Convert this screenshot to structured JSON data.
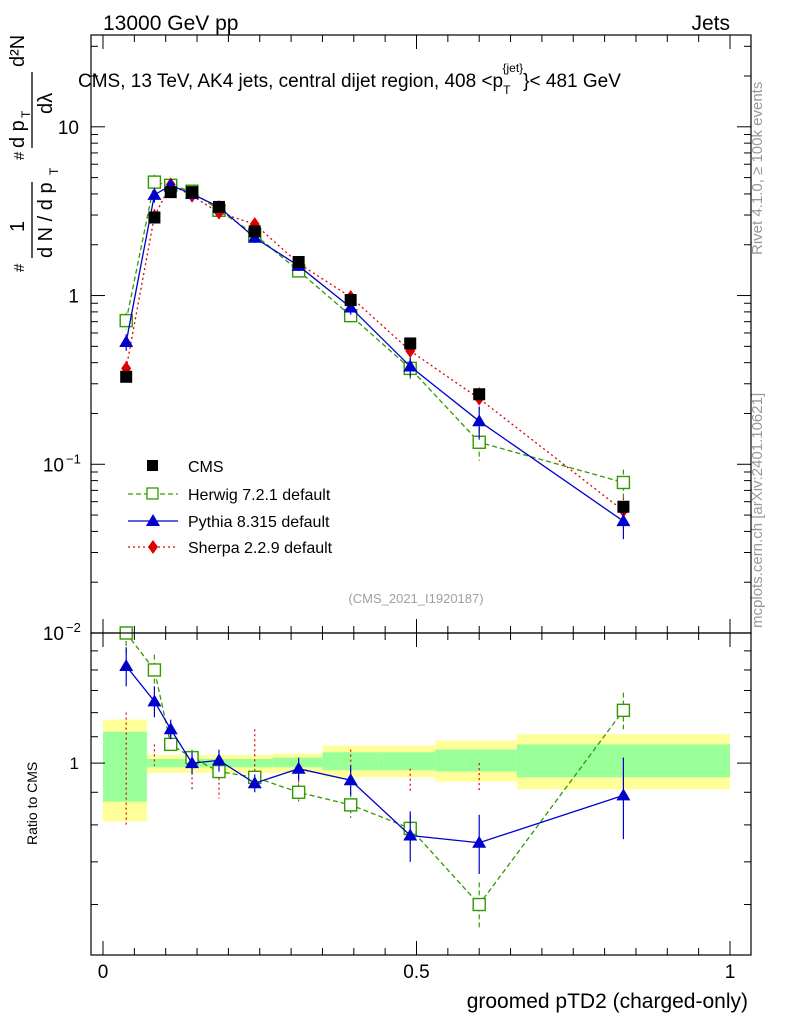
{
  "header": {
    "left_label": "13000 GeV pp",
    "right_label": "Jets",
    "side_label_top": "Rivet 4.1.0, ≥ 100k events",
    "side_label_bottom": "mcplots.cern.ch [arXiv:2401.10621]"
  },
  "chart_data": [
    {
      "type": "line",
      "panel": "main",
      "title": "CMS, 13 TeV, AK4 jets, central dijet region, 408 <p",
      "title_sub": "T",
      "title_sup": "{jet}",
      "title_end": "}< 481 GeV",
      "ylabel_parts": [
        "#",
        "1",
        "d N / d p",
        "T",
        "#",
        "d p",
        "T",
        "dλ",
        "d²N"
      ],
      "yscale": "log",
      "ylim": [
        0.01,
        35
      ],
      "xlim": [
        0,
        1
      ],
      "y_ticks": [
        {
          "value": 0.01,
          "base": "10",
          "exp": "−2"
        },
        {
          "value": 0.1,
          "base": "10",
          "exp": "−1"
        },
        {
          "value": 1,
          "label": "1"
        },
        {
          "value": 10,
          "label": "10"
        }
      ],
      "analysis_label": "(CMS_2021_I1920187)",
      "x": [
        0.037,
        0.082,
        0.108,
        0.142,
        0.185,
        0.242,
        0.312,
        0.395,
        0.49,
        0.6,
        0.83
      ],
      "series": [
        {
          "name": "CMS",
          "color": "#000000",
          "marker": "square",
          "values": [
            0.33,
            2.9,
            4.1,
            4.1,
            3.35,
            2.4,
            1.58,
            0.94,
            0.52,
            0.26,
            0.056
          ]
        },
        {
          "name": "Herwig 7.2.1 default",
          "color": "#339900",
          "marker": "open-square",
          "dash": "5,3",
          "values": [
            0.71,
            4.7,
            4.5,
            4.15,
            3.2,
            2.3,
            1.4,
            0.76,
            0.37,
            0.135,
            0.078
          ],
          "errors": [
            0.08,
            0.5,
            0.3,
            0.25,
            0.2,
            0.15,
            0.1,
            0.07,
            0.05,
            0.03,
            0.015
          ]
        },
        {
          "name": "Pythia 8.315 default",
          "color": "#0000cc",
          "marker": "triangle",
          "dash": "",
          "values": [
            0.53,
            3.95,
            4.5,
            4.0,
            3.35,
            2.2,
            1.5,
            0.85,
            0.38,
            0.18,
            0.046
          ],
          "errors": [
            0.06,
            0.4,
            0.3,
            0.25,
            0.2,
            0.15,
            0.1,
            0.08,
            0.05,
            0.04,
            0.01
          ]
        },
        {
          "name": "Sherpa 2.2.9 default",
          "color": "#dd0000",
          "marker": "diamond",
          "dash": "2,3",
          "values": [
            0.37,
            2.95,
            4.55,
            3.9,
            3.1,
            2.65,
            1.55,
            0.98,
            0.47,
            0.245,
            0.053
          ],
          "errors": [
            0.04,
            0.3,
            0.3,
            0.25,
            0.2,
            0.15,
            0.1,
            0.08,
            0.05,
            0.04,
            0.01
          ]
        }
      ],
      "legend_position": "bottom-left"
    },
    {
      "type": "line",
      "panel": "ratio",
      "ylabel": "Ratio to CMS",
      "xlabel": "groomed pTD2 (charged-only)",
      "yscale": "log",
      "ylim": [
        0.5,
        1.6
      ],
      "xlim": [
        0,
        1
      ],
      "x_ticks": [
        0,
        0.5,
        1
      ],
      "y_ticks": [
        1
      ],
      "bands": {
        "edges": [
          0,
          0.07,
          0.18,
          0.27,
          0.35,
          0.44,
          0.53,
          0.66,
          1.0
        ],
        "inner_low": [
          0.87,
          0.985,
          0.985,
          0.985,
          0.975,
          0.975,
          0.97,
          0.95
        ],
        "inner_high": [
          1.12,
          1.015,
          1.015,
          1.02,
          1.04,
          1.04,
          1.05,
          1.07
        ],
        "outer_low": [
          0.81,
          0.965,
          0.965,
          0.965,
          0.95,
          0.95,
          0.935,
          0.91
        ],
        "outer_high": [
          1.17,
          1.03,
          1.03,
          1.035,
          1.065,
          1.065,
          1.085,
          1.11
        ]
      },
      "series": [
        {
          "name": "Herwig 7.2.1 default",
          "values": [
            1.63,
            1.4,
            1.07,
            1.02,
            0.97,
            0.95,
            0.9,
            0.86,
            0.79,
            0.6,
            1.21
          ],
          "errors": [
            0.14,
            0.08,
            0.03,
            0.03,
            0.03,
            0.03,
            0.03,
            0.04,
            0.04,
            0.05,
            0.08
          ]
        },
        {
          "name": "Pythia 8.315 default",
          "values": [
            1.42,
            1.25,
            1.13,
            1.0,
            1.01,
            0.93,
            0.98,
            0.94,
            0.77,
            0.75,
            0.89
          ],
          "errors": [
            0.1,
            0.07,
            0.04,
            0.04,
            0.04,
            0.03,
            0.04,
            0.05,
            0.07,
            0.08,
            0.13
          ]
        },
        {
          "name": "Sherpa 2.2.9 default",
          "values": [
            1.0,
            1.03,
            1.08,
            0.97,
            0.95,
            1.04,
            0.97,
            1.0,
            0.94,
            0.95,
            0.97
          ],
          "errors": [
            0.2,
            0.04,
            0.03,
            0.07,
            0.07,
            0.09,
            0.04,
            0.05,
            0.04,
            0.05,
            0.05
          ]
        }
      ]
    }
  ]
}
